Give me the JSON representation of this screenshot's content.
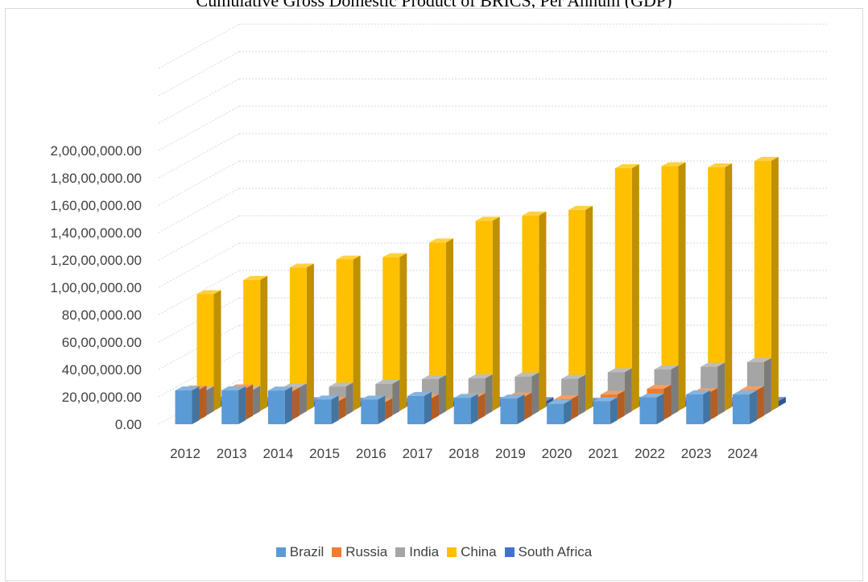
{
  "chart_data": {
    "type": "bar",
    "title": "Cumulative Gross Domestic Product of BRICS, Per Annum (GDP)",
    "categories": [
      "2012",
      "2013",
      "2014",
      "2015",
      "2016",
      "2017",
      "2018",
      "2019",
      "2020",
      "2021",
      "2022",
      "2023",
      "2024"
    ],
    "series": [
      {
        "name": "Brazil",
        "color": "#5b9bd5",
        "values": [
          2465000,
          2473000,
          2456000,
          1802000,
          1796000,
          2064000,
          1917000,
          1873000,
          1476000,
          1670000,
          1951000,
          2173000,
          2171000
        ]
      },
      {
        "name": "Russia",
        "color": "#ed7d31",
        "values": [
          2208000,
          2292000,
          2059000,
          1363000,
          1277000,
          1574000,
          1657000,
          1693000,
          1489000,
          1837000,
          2266000,
          2021000,
          2161000
        ]
      },
      {
        "name": "India",
        "color": "#a5a5a5",
        "values": [
          1828000,
          1857000,
          2039000,
          2103000,
          2295000,
          2651000,
          2702000,
          2835000,
          2672000,
          3150000,
          3353000,
          3550000,
          3889000
        ]
      },
      {
        "name": "China",
        "color": "#ffc000",
        "values": [
          8532000,
          9570000,
          10476000,
          11062000,
          11233000,
          12310000,
          13895000,
          14280000,
          14688000,
          17734000,
          17881000,
          17795000,
          18273000
        ]
      },
      {
        "name": "South Africa",
        "color": "#4472c4",
        "values": [
          434000,
          400000,
          381000,
          347000,
          323000,
          381000,
          405000,
          389000,
          338000,
          419000,
          405000,
          380000,
          401000
        ]
      }
    ],
    "ylim": [
      0,
      20000000
    ],
    "yticks": [
      "0.00",
      "20,00,000.00",
      "40,00,000.00",
      "60,00,000.00",
      "80,00,000.00",
      "1,00,00,000.00",
      "1,20,00,000.00",
      "1,40,00,000.00",
      "1,60,00,000.00",
      "1,80,00,000.00",
      "2,00,00,000.00"
    ],
    "grid": true,
    "legend_position": "bottom",
    "style": "3d-clustered-column"
  }
}
